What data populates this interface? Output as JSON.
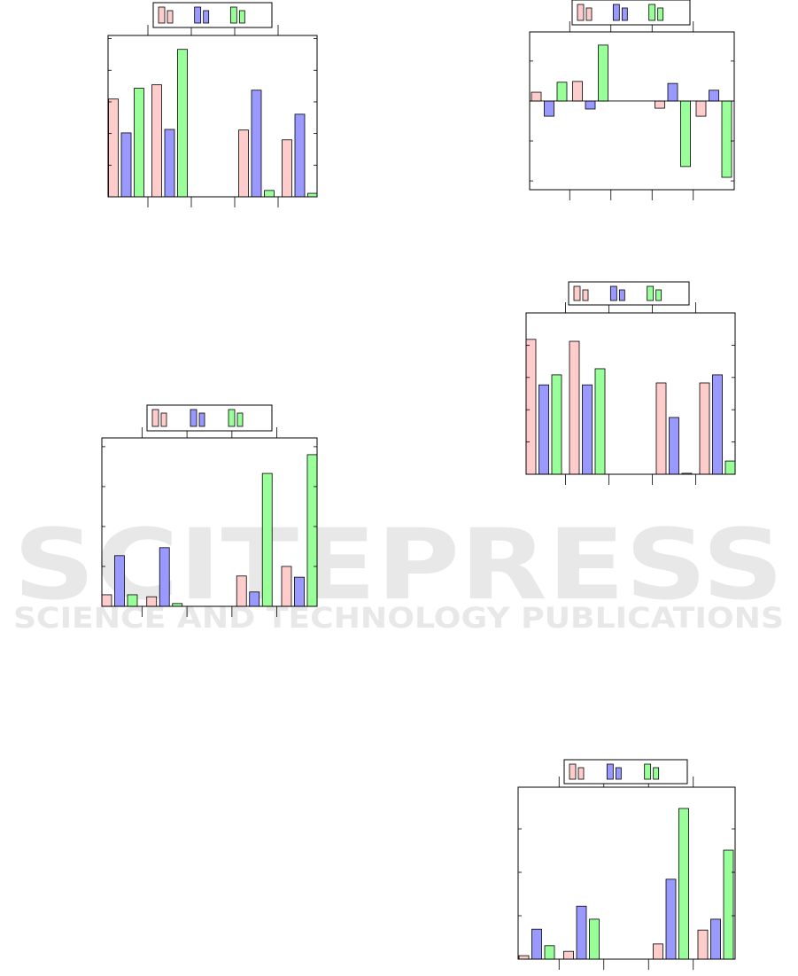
{
  "watermark": {
    "title": "SCITEPRESS",
    "subtitle": "SCIENCE AND TECHNOLOGY PUBLICATIONS"
  },
  "chart_data": [
    {
      "type": "bar",
      "categories": [
        null,
        null,
        null,
        null,
        null
      ],
      "ylim": [
        0,
        5.1
      ],
      "yticks": [
        1,
        2,
        3,
        4,
        5
      ],
      "series": [
        {
          "color": "#ffcccc",
          "values": [
            3.09,
            3.54,
            null,
            2.11,
            1.8
          ]
        },
        {
          "color": "#9999ff",
          "values": [
            2.02,
            2.13,
            null,
            3.37,
            2.61
          ]
        },
        {
          "color": "#99ff99",
          "values": [
            3.43,
            4.66,
            null,
            0.2,
            0.11
          ]
        }
      ]
    },
    {
      "type": "bar",
      "categories": [
        null,
        null,
        null,
        null,
        null
      ],
      "ylim": [
        -2.22,
        1.73
      ],
      "yticks": [
        -2,
        -1,
        0,
        1
      ],
      "series": [
        {
          "color": "#ffcccc",
          "values": [
            0.22,
            0.49,
            null,
            -0.18,
            -0.38
          ]
        },
        {
          "color": "#9999ff",
          "values": [
            -0.38,
            -0.2,
            null,
            0.44,
            0.27
          ]
        },
        {
          "color": "#99ff99",
          "values": [
            0.47,
            1.4,
            null,
            -1.64,
            -1.91
          ]
        }
      ]
    },
    {
      "type": "bar",
      "categories": [
        null,
        null,
        null,
        null,
        null
      ],
      "ylim": [
        0,
        5
      ],
      "yticks": [
        1,
        2,
        3,
        4
      ],
      "series": [
        {
          "color": "#ffcccc",
          "values": [
            4.18,
            4.12,
            null,
            2.83,
            2.83
          ]
        },
        {
          "color": "#9999ff",
          "values": [
            2.77,
            2.77,
            null,
            1.76,
            3.08
          ]
        },
        {
          "color": "#99ff99",
          "values": [
            3.08,
            3.27,
            null,
            0.03,
            0.41
          ]
        }
      ]
    },
    {
      "type": "bar",
      "categories": [
        null,
        null,
        null,
        null,
        null
      ],
      "ylim": [
        0,
        4.22
      ],
      "yticks": [
        1,
        2,
        3,
        4
      ],
      "series": [
        {
          "color": "#ffcccc",
          "values": [
            0.29,
            0.24,
            null,
            0.76,
            1.0
          ]
        },
        {
          "color": "#9999ff",
          "values": [
            1.27,
            1.47,
            null,
            0.36,
            0.73
          ]
        },
        {
          "color": "#99ff99",
          "values": [
            0.29,
            0.07,
            null,
            3.33,
            3.8
          ]
        }
      ]
    },
    {
      "type": "bar",
      "categories": [
        null,
        null,
        null,
        null,
        null
      ],
      "ylim": [
        0,
        3.96
      ],
      "yticks": [
        1,
        2,
        3
      ],
      "series": [
        {
          "color": "#ffcccc",
          "values": [
            0.08,
            0.18,
            null,
            0.35,
            0.67
          ]
        },
        {
          "color": "#9999ff",
          "values": [
            0.69,
            1.22,
            null,
            1.84,
            0.92
          ]
        },
        {
          "color": "#99ff99",
          "values": [
            0.31,
            0.92,
            null,
            3.47,
            2.51
          ]
        }
      ]
    }
  ]
}
